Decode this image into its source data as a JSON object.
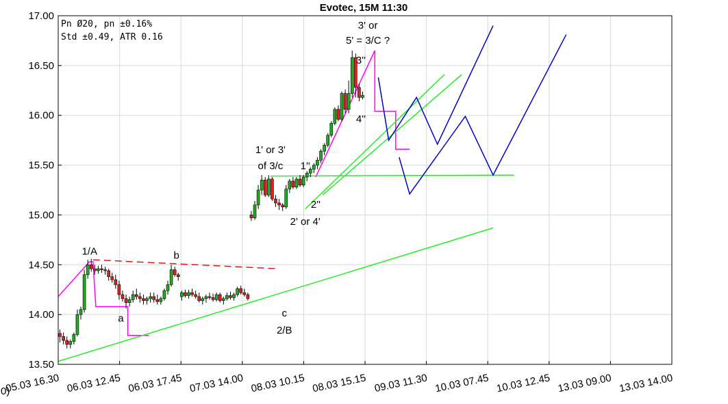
{
  "chart_data": {
    "type": "candlestick",
    "title": "Evotec, 15M 11:30",
    "info_lines": [
      "Pn  Ø20, pn ±0.16%",
      "Std ±0.49, ATR 0.16"
    ],
    "ylim": [
      13.5,
      17.0
    ],
    "y_ticks": [
      13.5,
      14.0,
      14.5,
      15.0,
      15.5,
      16.0,
      16.5,
      17.0
    ],
    "y_tick_labels": [
      "13.50",
      "14.00",
      "14.50",
      "15.00",
      "15.50",
      "16.00",
      "16.50",
      "17.00"
    ],
    "x_tick_labels": [
      "05.03 16.30",
      "06.03 12.45",
      "06.03 17.45",
      "07.03 14.00",
      "08.03 10.15",
      "08.03 15.15",
      "09.03 11.30",
      "10.03 07.45",
      "10.03 12.45",
      "13.03 09.00",
      "13.03 14.00"
    ],
    "x_tick_prefix": "0)",
    "grid": true,
    "colors": {
      "up": "#22aa22",
      "down": "#dd2222",
      "wick": "#000000",
      "projection": "#0000cc",
      "impulse": "#ff00ff",
      "trend": "#22ee22",
      "resistance": "#ee1111"
    },
    "candles": [
      [
        0,
        13.81,
        13.85,
        13.72,
        13.78
      ],
      [
        1,
        13.78,
        13.82,
        13.7,
        13.74
      ],
      [
        2,
        13.74,
        13.78,
        13.66,
        13.7
      ],
      [
        3,
        13.7,
        13.75,
        13.66,
        13.73
      ],
      [
        4,
        13.73,
        13.82,
        13.7,
        13.8
      ],
      [
        5,
        13.8,
        14.05,
        13.78,
        14.0
      ],
      [
        6,
        14.0,
        14.08,
        13.95,
        14.05
      ],
      [
        7,
        14.05,
        14.45,
        14.02,
        14.4
      ],
      [
        8,
        14.4,
        14.55,
        14.36,
        14.5
      ],
      [
        9,
        14.5,
        14.56,
        14.43,
        14.46
      ],
      [
        10,
        14.46,
        14.5,
        14.4,
        14.44
      ],
      [
        11,
        14.44,
        14.49,
        14.41,
        14.46
      ],
      [
        12,
        14.46,
        14.5,
        14.42,
        14.45
      ],
      [
        13,
        14.45,
        14.48,
        14.4,
        14.44
      ],
      [
        14,
        14.44,
        14.46,
        14.34,
        14.38
      ],
      [
        15,
        14.38,
        14.42,
        14.32,
        14.35
      ],
      [
        16,
        14.35,
        14.4,
        14.26,
        14.3
      ],
      [
        17,
        14.3,
        14.34,
        14.15,
        14.2
      ],
      [
        18,
        14.2,
        14.24,
        14.13,
        14.16
      ],
      [
        19,
        14.16,
        14.2,
        14.06,
        14.12
      ],
      [
        20,
        14.12,
        14.18,
        14.08,
        14.15
      ],
      [
        21,
        14.15,
        14.24,
        14.12,
        14.2
      ],
      [
        22,
        14.2,
        14.26,
        14.15,
        14.18
      ],
      [
        23,
        14.18,
        14.22,
        14.12,
        14.16
      ],
      [
        24,
        14.16,
        14.2,
        14.1,
        14.14
      ],
      [
        25,
        14.14,
        14.18,
        14.1,
        14.16
      ],
      [
        26,
        14.16,
        14.22,
        14.12,
        14.18
      ],
      [
        27,
        14.18,
        14.22,
        14.12,
        14.15
      ],
      [
        28,
        14.15,
        14.2,
        14.1,
        14.13
      ],
      [
        29,
        14.13,
        14.18,
        14.1,
        14.16
      ],
      [
        30,
        14.16,
        14.26,
        14.14,
        14.24
      ],
      [
        31,
        14.24,
        14.34,
        14.2,
        14.3
      ],
      [
        32,
        14.3,
        14.5,
        14.28,
        14.45
      ],
      [
        33,
        14.45,
        14.48,
        14.38,
        14.4
      ],
      [
        34,
        14.4,
        14.42,
        14.34,
        14.38
      ],
      [
        35,
        14.18,
        14.24,
        14.14,
        14.22
      ],
      [
        36,
        14.22,
        14.25,
        14.17,
        14.19
      ],
      [
        37,
        14.19,
        14.25,
        14.16,
        14.22
      ],
      [
        38,
        14.22,
        14.26,
        14.18,
        14.2
      ],
      [
        39,
        14.2,
        14.24,
        14.16,
        14.18
      ],
      [
        40,
        14.18,
        14.22,
        14.12,
        14.14
      ],
      [
        41,
        14.14,
        14.18,
        14.1,
        14.16
      ],
      [
        42,
        14.16,
        14.2,
        14.12,
        14.18
      ],
      [
        43,
        14.18,
        14.22,
        14.15,
        14.17
      ],
      [
        44,
        14.17,
        14.21,
        14.13,
        14.15
      ],
      [
        45,
        14.15,
        14.22,
        14.13,
        14.2
      ],
      [
        46,
        14.2,
        14.22,
        14.12,
        14.14
      ],
      [
        47,
        14.14,
        14.18,
        14.1,
        14.16
      ],
      [
        48,
        14.16,
        14.22,
        14.14,
        14.19
      ],
      [
        49,
        14.19,
        14.23,
        14.15,
        14.17
      ],
      [
        50,
        14.17,
        14.22,
        14.14,
        14.2
      ],
      [
        51,
        14.2,
        14.28,
        14.18,
        14.26
      ],
      [
        52,
        14.26,
        14.29,
        14.2,
        14.22
      ],
      [
        53,
        14.22,
        14.26,
        14.18,
        14.2
      ],
      [
        54,
        14.2,
        14.22,
        14.14,
        14.16
      ],
      [
        55,
        15.0,
        15.04,
        14.94,
        14.97
      ],
      [
        56,
        14.97,
        15.14,
        14.95,
        15.1
      ],
      [
        57,
        15.1,
        15.3,
        15.06,
        15.25
      ],
      [
        58,
        15.25,
        15.4,
        15.2,
        15.35
      ],
      [
        59,
        15.35,
        15.38,
        15.18,
        15.2
      ],
      [
        60,
        15.2,
        15.4,
        15.18,
        15.36
      ],
      [
        61,
        15.36,
        15.38,
        15.14,
        15.16
      ],
      [
        62,
        15.16,
        15.2,
        15.08,
        15.12
      ],
      [
        63,
        15.12,
        15.16,
        15.05,
        15.1
      ],
      [
        64,
        15.1,
        15.12,
        15.04,
        15.08
      ],
      [
        65,
        15.08,
        15.3,
        15.06,
        15.26
      ],
      [
        66,
        15.26,
        15.36,
        15.22,
        15.34
      ],
      [
        67,
        15.34,
        15.38,
        15.26,
        15.28
      ],
      [
        68,
        15.28,
        15.38,
        15.26,
        15.36
      ],
      [
        69,
        15.36,
        15.4,
        15.28,
        15.3
      ],
      [
        70,
        15.3,
        15.4,
        15.28,
        15.38
      ],
      [
        71,
        15.38,
        15.44,
        15.34,
        15.42
      ],
      [
        72,
        15.42,
        15.48,
        15.38,
        15.46
      ],
      [
        73,
        15.46,
        15.52,
        15.42,
        15.5
      ],
      [
        74,
        15.5,
        15.58,
        15.46,
        15.55
      ],
      [
        75,
        15.55,
        15.66,
        15.52,
        15.64
      ],
      [
        76,
        15.64,
        15.72,
        15.6,
        15.7
      ],
      [
        77,
        15.7,
        15.82,
        15.68,
        15.8
      ],
      [
        78,
        15.8,
        15.94,
        15.78,
        15.92
      ],
      [
        79,
        15.92,
        16.08,
        15.9,
        16.06
      ],
      [
        80,
        16.06,
        16.1,
        15.94,
        15.96
      ],
      [
        81,
        15.96,
        16.24,
        15.94,
        16.22
      ],
      [
        82,
        16.22,
        16.26,
        16.02,
        16.06
      ],
      [
        83,
        16.06,
        16.35,
        16.02,
        16.22
      ],
      [
        84,
        16.22,
        16.65,
        16.18,
        16.58
      ],
      [
        85,
        16.58,
        16.62,
        16.18,
        16.28
      ],
      [
        86,
        16.28,
        16.32,
        16.14,
        16.18
      ],
      [
        87,
        16.18,
        16.24,
        16.16,
        16.2
      ]
    ],
    "candle_slots": 88,
    "x_slot_range": [
      0,
      88
    ],
    "annotations": [
      {
        "text": "1/A",
        "x": 9,
        "y": 14.6
      },
      {
        "text": "a",
        "x": 18,
        "y": 13.93
      },
      {
        "text": "b",
        "x": 34,
        "y": 14.56
      },
      {
        "text": "c",
        "x": 65,
        "y": 13.98
      },
      {
        "text": "2/B",
        "x": 65,
        "y": 13.81
      },
      {
        "text": "1' or 3'",
        "x": 61,
        "y": 15.62
      },
      {
        "text": "of 3/c",
        "x": 61,
        "y": 15.46
      },
      {
        "text": "1''",
        "x": 71,
        "y": 15.46
      },
      {
        "text": "2''",
        "x": 74,
        "y": 15.07
      },
      {
        "text": "2' or 4'",
        "x": 71,
        "y": 14.9
      },
      {
        "text": "3' or",
        "x": 89,
        "y": 16.87
      },
      {
        "text": "5' = 3/C ?",
        "x": 89,
        "y": 16.72
      },
      {
        "text": "3''",
        "x": 87,
        "y": 16.52
      },
      {
        "text": "4''",
        "x": 87,
        "y": 15.93
      }
    ],
    "lines": [
      {
        "role": "impulse",
        "dash": false,
        "points": [
          [
            0,
            14.18
          ],
          [
            9,
            14.53
          ],
          [
            10,
            14.53
          ],
          [
            10.8,
            14.08
          ],
          [
            20,
            14.08
          ],
          [
            20,
            13.79
          ],
          [
            26,
            13.79
          ]
        ]
      },
      {
        "role": "impulse",
        "dash": false,
        "points": [
          [
            74,
            15.38
          ],
          [
            91,
            16.65
          ],
          [
            91,
            16.04
          ],
          [
            97,
            16.04
          ],
          [
            97,
            15.66
          ],
          [
            101,
            15.66
          ]
        ]
      },
      {
        "role": "resistance",
        "dash": true,
        "points": [
          [
            10,
            14.55
          ],
          [
            63,
            14.46
          ]
        ]
      },
      {
        "role": "trend",
        "dash": false,
        "points": [
          [
            0,
            13.53
          ],
          [
            125,
            14.87
          ]
        ]
      },
      {
        "role": "trend",
        "dash": false,
        "points": [
          [
            61,
            15.39
          ],
          [
            131,
            15.4
          ]
        ]
      },
      {
        "role": "trend",
        "dash": false,
        "points": [
          [
            71,
            15.06
          ],
          [
            111,
            16.41
          ]
        ]
      },
      {
        "role": "trend",
        "dash": false,
        "points": [
          [
            76,
            15.2
          ],
          [
            116,
            16.41
          ]
        ]
      },
      {
        "role": "projection",
        "dash": false,
        "points": [
          [
            92,
            16.38
          ],
          [
            95,
            15.75
          ],
          [
            103,
            16.18
          ],
          [
            109,
            15.71
          ],
          [
            125,
            16.9
          ]
        ]
      },
      {
        "role": "projection",
        "dash": false,
        "points": [
          [
            98,
            15.58
          ],
          [
            101,
            15.21
          ],
          [
            117,
            15.99
          ],
          [
            125,
            15.4
          ],
          [
            146,
            16.81
          ]
        ]
      }
    ],
    "xlabel": "",
    "ylabel": ""
  }
}
